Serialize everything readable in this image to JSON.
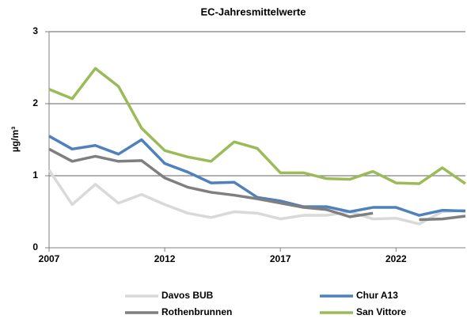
{
  "chart_data": {
    "type": "line",
    "title": "EC-Jahresmittelwerte",
    "y_label": "µg/m³",
    "x": [
      2007,
      2008,
      2009,
      2010,
      2011,
      2012,
      2013,
      2014,
      2015,
      2016,
      2017,
      2018,
      2019,
      2020,
      2021,
      2022,
      2023,
      2024,
      2025
    ],
    "xlim": [
      2007,
      2025
    ],
    "xticks": [
      2007,
      2012,
      2017,
      2022
    ],
    "ylim": [
      0,
      3
    ],
    "yticks": [
      0,
      1,
      2,
      3
    ],
    "grid": true,
    "series": [
      {
        "name": "Davos BUB",
        "color": "#d9d9d9",
        "values": [
          1.08,
          0.6,
          0.88,
          0.62,
          0.74,
          0.6,
          0.48,
          0.42,
          0.5,
          0.48,
          0.4,
          0.45,
          0.45,
          0.5,
          0.4,
          0.41,
          0.33,
          0.5,
          0.52
        ]
      },
      {
        "name": "Chur A13",
        "color": "#4f81bd",
        "values": [
          1.55,
          1.37,
          1.42,
          1.3,
          1.5,
          1.17,
          1.05,
          0.9,
          0.91,
          0.7,
          0.65,
          0.57,
          0.57,
          0.5,
          0.56,
          0.56,
          0.45,
          0.52,
          0.51
        ]
      },
      {
        "name": "Rothenbrunnen",
        "color": "#7f7f7f",
        "values": [
          1.37,
          1.2,
          1.27,
          1.2,
          1.21,
          0.97,
          0.84,
          0.77,
          0.73,
          0.68,
          0.62,
          0.56,
          0.53,
          0.43,
          0.48,
          null,
          0.39,
          0.4,
          0.44
        ]
      },
      {
        "name": "San Vittore",
        "color": "#9bbb59",
        "values": [
          2.2,
          2.07,
          2.49,
          2.24,
          1.66,
          1.35,
          1.26,
          1.2,
          1.47,
          1.38,
          1.04,
          1.04,
          0.96,
          0.95,
          1.06,
          0.9,
          0.89,
          1.11,
          0.89
        ]
      }
    ]
  }
}
